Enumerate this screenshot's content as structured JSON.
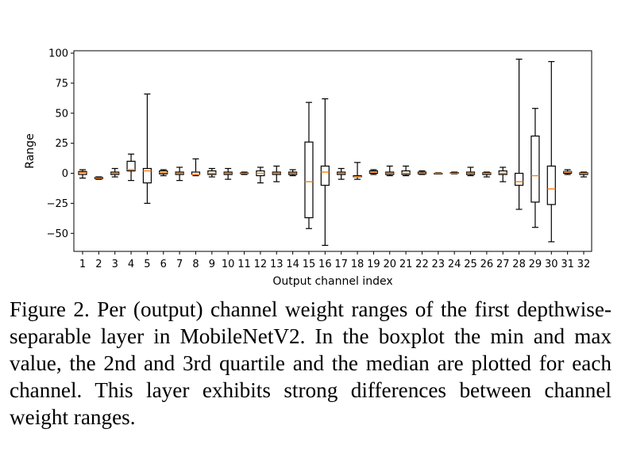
{
  "chart_data": {
    "type": "box",
    "xlabel": "Output channel index",
    "ylabel": "Range",
    "ylim": [
      -65,
      102
    ],
    "yticks": [
      100,
      75,
      50,
      25,
      0,
      -25,
      -50
    ],
    "ytick_labels": [
      "100",
      "75",
      "50",
      "25",
      "0",
      "−25",
      "−50"
    ],
    "categories": [
      "1",
      "2",
      "3",
      "4",
      "5",
      "6",
      "7",
      "8",
      "9",
      "10",
      "11",
      "12",
      "13",
      "14",
      "15",
      "16",
      "17",
      "18",
      "19",
      "20",
      "21",
      "22",
      "23",
      "24",
      "25",
      "26",
      "27",
      "28",
      "29",
      "30",
      "31",
      "32"
    ],
    "boxes": [
      {
        "min": -4,
        "q1": -1,
        "median": 0.5,
        "q3": 1.5,
        "max": 3
      },
      {
        "min": -5,
        "q1": -4.5,
        "median": -4,
        "q3": -3.5,
        "max": -3
      },
      {
        "min": -3,
        "q1": -1,
        "median": 0,
        "q3": 1,
        "max": 4
      },
      {
        "min": -6,
        "q1": 2,
        "median": 3,
        "q3": 10,
        "max": 16
      },
      {
        "min": -25,
        "q1": -8,
        "median": 2,
        "q3": 4,
        "max": 66
      },
      {
        "min": -2,
        "q1": -0.5,
        "median": 0.5,
        "q3": 2,
        "max": 3
      },
      {
        "min": -6,
        "q1": -1,
        "median": 0,
        "q3": 1,
        "max": 5
      },
      {
        "min": -2,
        "q1": -1,
        "median": -1,
        "q3": 1,
        "max": 12
      },
      {
        "min": -3,
        "q1": -1,
        "median": 0,
        "q3": 2,
        "max": 4
      },
      {
        "min": -5,
        "q1": -1,
        "median": 0,
        "q3": 1,
        "max": 4
      },
      {
        "min": -1,
        "q1": 0,
        "median": 0,
        "q3": 0.3,
        "max": 1
      },
      {
        "min": -8,
        "q1": -2,
        "median": 0,
        "q3": 2,
        "max": 5
      },
      {
        "min": -7,
        "q1": -1,
        "median": 0,
        "q3": 1,
        "max": 6
      },
      {
        "min": -2,
        "q1": -1,
        "median": 0,
        "q3": 1,
        "max": 3
      },
      {
        "min": -46,
        "q1": -37,
        "median": -7,
        "q3": 26,
        "max": 59
      },
      {
        "min": -60,
        "q1": -10,
        "median": 1,
        "q3": 6,
        "max": 62
      },
      {
        "min": -5,
        "q1": -1,
        "median": 0,
        "q3": 1,
        "max": 4
      },
      {
        "min": -5,
        "q1": -3,
        "median": -3,
        "q3": -2,
        "max": 9
      },
      {
        "min": -1,
        "q1": 0,
        "median": 1,
        "q3": 2,
        "max": 3
      },
      {
        "min": -2,
        "q1": -1,
        "median": 0,
        "q3": 1,
        "max": 6
      },
      {
        "min": -2,
        "q1": -1,
        "median": 0,
        "q3": 2,
        "max": 6
      },
      {
        "min": -1,
        "q1": -0.5,
        "median": 0,
        "q3": 1,
        "max": 2
      },
      {
        "min": -0.5,
        "q1": 0,
        "median": 0,
        "q3": 0,
        "max": 0.5
      },
      {
        "min": -0.5,
        "q1": 0,
        "median": 0,
        "q3": 0.5,
        "max": 1
      },
      {
        "min": -2,
        "q1": -1,
        "median": 0,
        "q3": 1,
        "max": 5
      },
      {
        "min": -3,
        "q1": -1,
        "median": 0,
        "q3": 0.5,
        "max": 1
      },
      {
        "min": -7,
        "q1": -1,
        "median": 0,
        "q3": 2,
        "max": 5
      },
      {
        "min": -30,
        "q1": -10,
        "median": -7,
        "q3": 0,
        "max": 95
      },
      {
        "min": -45,
        "q1": -24,
        "median": -2,
        "q3": 31,
        "max": 54
      },
      {
        "min": -57,
        "q1": -26,
        "median": -13,
        "q3": 6,
        "max": 93
      },
      {
        "min": -1,
        "q1": 0,
        "median": 1,
        "q3": 1.5,
        "max": 3
      },
      {
        "min": -3,
        "q1": -1,
        "median": 0,
        "q3": 0.5,
        "max": 1
      }
    ],
    "box_color": "#000000",
    "median_color": "#ff7f0e",
    "grid": false,
    "legend": false
  },
  "caption": "Figure 2. Per (output) channel weight ranges of the first depthwise-separable layer in MobileNetV2. In the boxplot the min and max value, the 2nd and 3rd quartile and the median are plotted for each channel. This layer exhibits strong differences between channel weight ranges."
}
